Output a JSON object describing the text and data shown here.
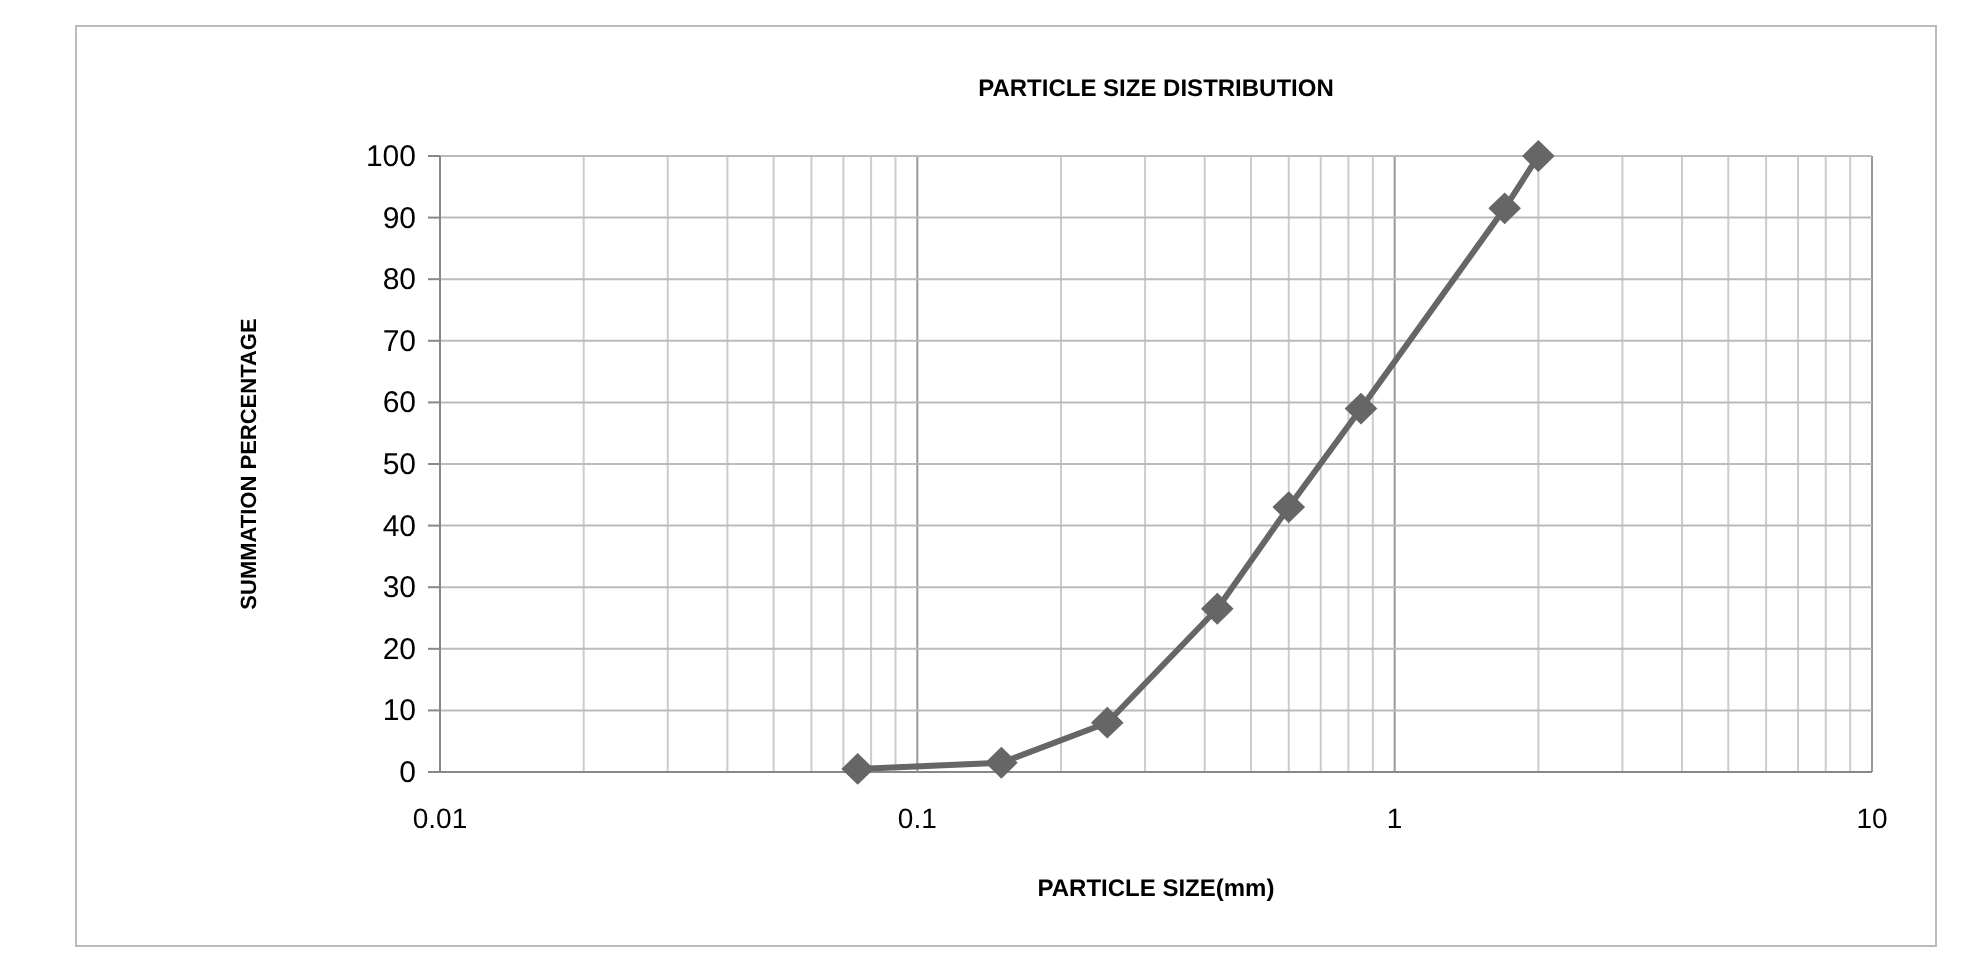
{
  "chart_data": {
    "type": "line",
    "title": "PARTICLE SIZE DISTRIBUTION",
    "xlabel": "PARTICLE SIZE(mm)",
    "ylabel": "SUMMATION PERCENTAGE",
    "x": [
      0.075,
      0.15,
      0.25,
      0.425,
      0.6,
      0.85,
      1.7,
      2
    ],
    "series": [
      {
        "color": "#666666",
        "values": [
          0.5,
          1.5,
          8,
          26.5,
          43,
          59,
          91.5,
          100
        ]
      }
    ],
    "log": "x",
    "xlim": [
      0.01,
      10
    ],
    "xticks": [
      0.01,
      0.1,
      1,
      10
    ],
    "ylim": [
      0,
      100
    ],
    "yticks": [
      0,
      10,
      20,
      30,
      40,
      50,
      60,
      70,
      80,
      90,
      100
    ],
    "grid": true,
    "marker": "diamond",
    "line_style": "solid"
  }
}
